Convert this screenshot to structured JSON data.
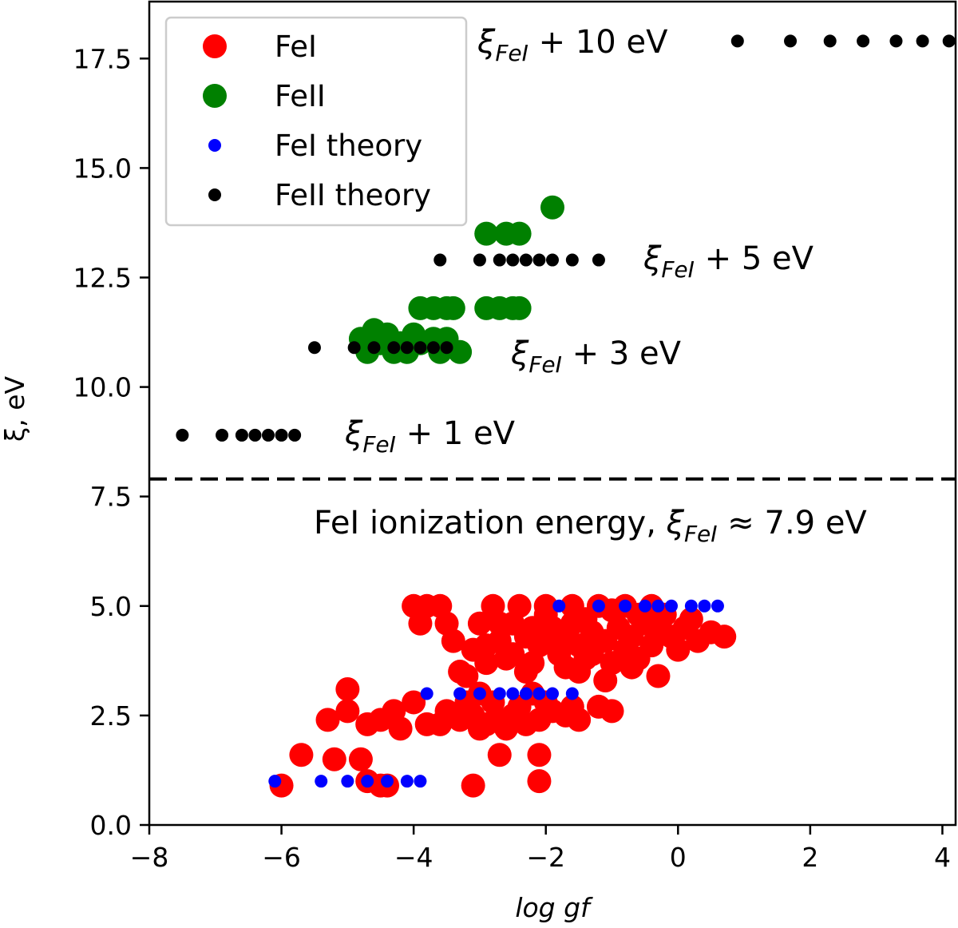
{
  "chart_data": {
    "type": "scatter",
    "xlabel": "log gf",
    "ylabel": "ξ, eV",
    "xlim": [
      -8,
      4.2
    ],
    "ylim": [
      0,
      18.8
    ],
    "x_ticks": [
      -8,
      -6,
      -4,
      -2,
      0,
      2,
      4
    ],
    "x_tick_labels": [
      "−8",
      "−6",
      "−4",
      "−2",
      "0",
      "2",
      "4"
    ],
    "y_ticks": [
      0,
      2.5,
      5,
      7.5,
      10,
      12.5,
      15,
      17.5
    ],
    "y_tick_labels": [
      "0.0",
      "2.5",
      "5.0",
      "7.5",
      "10.0",
      "12.5",
      "15.0",
      "17.5"
    ],
    "grid": false,
    "legend_placement": "top-left",
    "colors": {
      "fe1": "#ff0000",
      "fe2": "#008000",
      "fe1_theory": "#0000ff",
      "fe2_theory": "#000000"
    },
    "hline": {
      "y": 7.9,
      "style": "dashed"
    },
    "legend": [
      {
        "label": "FeI",
        "series": "fe1"
      },
      {
        "label": "FeII",
        "series": "fe2"
      },
      {
        "label": "FeI theory",
        "series": "fe1_theory"
      },
      {
        "label": "FeII theory",
        "series": "fe2_theory"
      }
    ],
    "annotations": [
      {
        "x": 6.3,
        "y": 10.1,
        "prefix": "",
        "xi": "ξ",
        "sub": "FeI",
        "suffix": " + 1 eV"
      },
      {
        "x": 10.6,
        "y": 10.3,
        "prefix": "",
        "xi": "ξ",
        "sub": "FeI",
        "suffix": " + 3 eV"
      },
      {
        "x": 13.3,
        "y": 11.6,
        "prefix": "",
        "xi": "ξ",
        "sub": "FeI",
        "suffix": " + 5 eV"
      },
      {
        "x": 15.9,
        "y": 16.1,
        "prefix": "",
        "xi": "ξ",
        "sub": "FeI",
        "suffix": " + 10 eV"
      },
      {
        "x": 18.8,
        "y": 12.8,
        "prefix": "FeI ionization energy, ",
        "xi": "ξ",
        "sub": "FeI",
        "suffix": " ≈ 7.9 eV"
      }
    ],
    "series": {
      "fe2_theory": [
        [
          -7.5,
          8.9
        ],
        [
          -6.9,
          8.9
        ],
        [
          -6.6,
          8.9
        ],
        [
          -6.4,
          8.9
        ],
        [
          -6.2,
          8.9
        ],
        [
          -6.0,
          8.9
        ],
        [
          -5.8,
          8.9
        ],
        [
          -5.5,
          10.9
        ],
        [
          -4.9,
          10.9
        ],
        [
          -4.6,
          10.9
        ],
        [
          -4.3,
          10.9
        ],
        [
          -4.1,
          10.9
        ],
        [
          -3.9,
          10.9
        ],
        [
          -3.7,
          10.9
        ],
        [
          -3.5,
          10.9
        ],
        [
          -3.6,
          12.9
        ],
        [
          -3.0,
          12.9
        ],
        [
          -2.7,
          12.9
        ],
        [
          -2.5,
          12.9
        ],
        [
          -2.3,
          12.9
        ],
        [
          -2.1,
          12.9
        ],
        [
          -1.9,
          12.9
        ],
        [
          -1.6,
          12.9
        ],
        [
          -1.2,
          12.9
        ],
        [
          0.9,
          17.9
        ],
        [
          1.7,
          17.9
        ],
        [
          2.3,
          17.9
        ],
        [
          2.8,
          17.9
        ],
        [
          3.3,
          17.9
        ],
        [
          3.7,
          17.9
        ],
        [
          4.1,
          17.9
        ]
      ],
      "fe2": [
        [
          -4.8,
          11.1
        ],
        [
          -4.6,
          11.3
        ],
        [
          -4.4,
          11.2
        ],
        [
          -4.2,
          11.0
        ],
        [
          -4.0,
          11.2
        ],
        [
          -3.7,
          11.1
        ],
        [
          -3.5,
          11.1
        ],
        [
          -4.7,
          10.8
        ],
        [
          -4.3,
          10.8
        ],
        [
          -4.1,
          10.8
        ],
        [
          -3.6,
          10.8
        ],
        [
          -3.3,
          10.8
        ],
        [
          -4.5,
          11.0
        ],
        [
          -3.9,
          11.0
        ],
        [
          -3.9,
          11.8
        ],
        [
          -3.7,
          11.8
        ],
        [
          -3.5,
          11.8
        ],
        [
          -3.4,
          11.8
        ],
        [
          -2.9,
          11.8
        ],
        [
          -2.7,
          11.8
        ],
        [
          -2.5,
          11.8
        ],
        [
          -2.4,
          11.8
        ],
        [
          -2.9,
          13.5
        ],
        [
          -2.6,
          13.5
        ],
        [
          -2.4,
          13.5
        ],
        [
          -1.9,
          14.1
        ]
      ],
      "fe1_theory": [
        [
          -6.1,
          1.0
        ],
        [
          -5.4,
          1.0
        ],
        [
          -5.0,
          1.0
        ],
        [
          -4.7,
          1.0
        ],
        [
          -4.4,
          1.0
        ],
        [
          -4.1,
          1.0
        ],
        [
          -3.9,
          1.0
        ],
        [
          -3.8,
          3.0
        ],
        [
          -3.3,
          3.0
        ],
        [
          -3.0,
          3.0
        ],
        [
          -2.7,
          3.0
        ],
        [
          -2.5,
          3.0
        ],
        [
          -2.3,
          3.0
        ],
        [
          -2.1,
          3.0
        ],
        [
          -1.9,
          3.0
        ],
        [
          -1.6,
          3.0
        ],
        [
          -1.8,
          5.0
        ],
        [
          -1.2,
          5.0
        ],
        [
          -0.8,
          5.0
        ],
        [
          -0.5,
          5.0
        ],
        [
          -0.3,
          5.0
        ],
        [
          -0.1,
          5.0
        ],
        [
          0.2,
          5.0
        ],
        [
          0.4,
          5.0
        ],
        [
          0.6,
          5.0
        ]
      ],
      "fe1": [
        [
          -6.0,
          0.9
        ],
        [
          -5.7,
          1.6
        ],
        [
          -5.2,
          1.5
        ],
        [
          -4.8,
          1.5
        ],
        [
          -4.7,
          1.0
        ],
        [
          -4.5,
          0.9
        ],
        [
          -4.4,
          0.9
        ],
        [
          -5.3,
          2.4
        ],
        [
          -5.0,
          3.1
        ],
        [
          -5.0,
          2.6
        ],
        [
          -4.7,
          2.3
        ],
        [
          -4.5,
          2.4
        ],
        [
          -4.3,
          2.6
        ],
        [
          -4.0,
          2.8
        ],
        [
          -4.2,
          2.2
        ],
        [
          -3.8,
          2.3
        ],
        [
          -3.6,
          2.3
        ],
        [
          -3.3,
          2.4
        ],
        [
          -3.1,
          2.5
        ],
        [
          -2.9,
          2.3
        ],
        [
          -2.7,
          2.4
        ],
        [
          -2.5,
          2.5
        ],
        [
          -2.3,
          2.3
        ],
        [
          -2.1,
          2.4
        ],
        [
          -1.9,
          2.6
        ],
        [
          -1.7,
          2.5
        ],
        [
          -1.5,
          2.4
        ],
        [
          -3.5,
          2.6
        ],
        [
          -3.0,
          2.2
        ],
        [
          -2.6,
          2.2
        ],
        [
          -3.2,
          2.8
        ],
        [
          -2.8,
          2.8
        ],
        [
          -2.4,
          2.7
        ],
        [
          -2.0,
          2.8
        ],
        [
          -1.6,
          2.7
        ],
        [
          -3.2,
          3.4
        ],
        [
          -3.0,
          3.0
        ],
        [
          -1.2,
          2.7
        ],
        [
          -1.0,
          2.6
        ],
        [
          -2.2,
          3.0
        ],
        [
          -2.7,
          1.6
        ],
        [
          -2.1,
          1.6
        ],
        [
          -3.1,
          0.9
        ],
        [
          -2.1,
          1.0
        ],
        [
          -4.0,
          5.0
        ],
        [
          -3.8,
          5.0
        ],
        [
          -3.6,
          5.0
        ],
        [
          -3.9,
          4.6
        ],
        [
          -3.5,
          4.6
        ],
        [
          -3.4,
          4.2
        ],
        [
          -3.1,
          4.0
        ],
        [
          -3.0,
          4.6
        ],
        [
          -2.9,
          3.7
        ],
        [
          -2.7,
          4.2
        ],
        [
          -2.5,
          4.6
        ],
        [
          -2.3,
          4.3
        ],
        [
          -2.1,
          4.1
        ],
        [
          -1.9,
          4.5
        ],
        [
          -1.7,
          4.3
        ],
        [
          -1.5,
          4.1
        ],
        [
          -1.3,
          4.4
        ],
        [
          -1.1,
          4.2
        ],
        [
          -0.9,
          4.5
        ],
        [
          -0.7,
          4.3
        ],
        [
          -0.5,
          4.6
        ],
        [
          -0.3,
          4.4
        ],
        [
          -0.1,
          4.3
        ],
        [
          0.1,
          4.5
        ],
        [
          0.3,
          4.2
        ],
        [
          0.5,
          4.4
        ],
        [
          0.7,
          4.3
        ],
        [
          -2.8,
          5.0
        ],
        [
          -2.4,
          5.0
        ],
        [
          -2.0,
          5.0
        ],
        [
          -1.6,
          5.0
        ],
        [
          -1.2,
          5.0
        ],
        [
          -0.8,
          5.0
        ],
        [
          -0.4,
          5.0
        ],
        [
          -2.6,
          3.8
        ],
        [
          -2.2,
          3.7
        ],
        [
          -1.8,
          3.9
        ],
        [
          -1.4,
          3.8
        ],
        [
          -1.0,
          3.7
        ],
        [
          -0.6,
          3.8
        ],
        [
          -2.3,
          3.5
        ],
        [
          -1.5,
          3.5
        ],
        [
          -1.1,
          3.3
        ],
        [
          -0.3,
          3.4
        ],
        [
          -2.0,
          4.8
        ],
        [
          -1.4,
          4.7
        ],
        [
          -1.0,
          4.9
        ],
        [
          -0.6,
          4.8
        ],
        [
          -0.2,
          4.8
        ],
        [
          0.2,
          4.7
        ],
        [
          -2.7,
          4.6
        ],
        [
          -2.2,
          4.5
        ],
        [
          -1.8,
          4.2
        ],
        [
          -1.6,
          4.6
        ],
        [
          -1.2,
          4.2
        ],
        [
          -0.8,
          4.0
        ],
        [
          -0.4,
          4.1
        ],
        [
          0.0,
          4.0
        ],
        [
          -2.5,
          3.9
        ],
        [
          -1.7,
          3.6
        ],
        [
          -1.3,
          3.9
        ],
        [
          -0.7,
          3.6
        ],
        [
          -3.3,
          3.5
        ],
        [
          -2.9,
          4.1
        ]
      ]
    }
  }
}
